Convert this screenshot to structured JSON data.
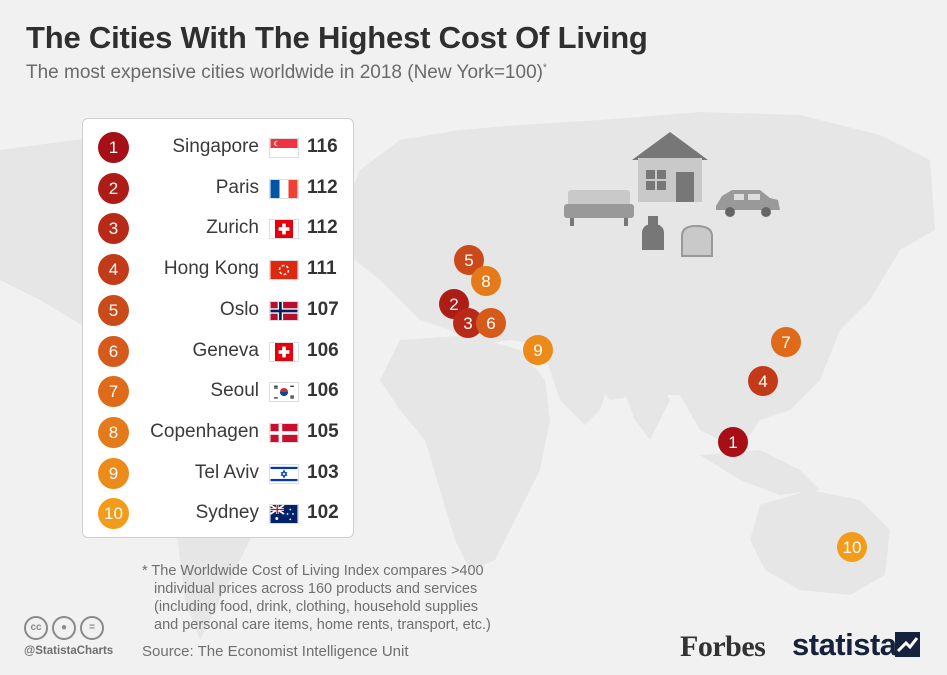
{
  "title": "The Cities With The Highest Cost Of Living",
  "subtitle": "The most expensive cities worldwide in 2018 (New York=100)",
  "subtitle_mark": "*",
  "footnote": [
    "* The Worldwide Cost of Living Index compares >400",
    "individual prices across 160 products and services",
    "(including food, drink, clothing, household supplies",
    "and personal care items, home rents, transport, etc.)"
  ],
  "source": "Source: The Economist Intelligence Unit",
  "handle": "@StatistaCharts",
  "brand": {
    "forbes": "Forbes",
    "statista": "statista"
  },
  "icons": [
    "cc-icon",
    "attribution-icon",
    "no-derivatives-icon",
    "house-icon",
    "sofa-icon",
    "car-icon",
    "bottle-icon",
    "bread-icon",
    "statista-logo-icon"
  ],
  "colors": {
    "background": "#f1f1f1",
    "land": "#e6e6e6",
    "rank_dark": "#a50f15",
    "rank_mid": "#c6421a",
    "rank_light": "#f08c1a",
    "text": "#333333"
  },
  "chart_data": {
    "type": "table",
    "title": "The Cities With The Highest Cost Of Living",
    "subtitle": "The most expensive cities worldwide in 2018 (New York=100)",
    "rows": [
      {
        "rank": "1",
        "city": "Singapore",
        "value": 116,
        "flag": "singapore-flag",
        "color": "#a50f15"
      },
      {
        "rank": "2",
        "city": "Paris",
        "value": 112,
        "flag": "france-flag",
        "color": "#ae1c16"
      },
      {
        "rank": "3",
        "city": "Zurich",
        "value": 112,
        "flag": "switzerland-flag",
        "color": "#b82a17"
      },
      {
        "rank": "4",
        "city": "Hong Kong",
        "value": 111,
        "flag": "hong-kong-flag",
        "color": "#c23a18"
      },
      {
        "rank": "5",
        "city": "Oslo",
        "value": 107,
        "flag": "norway-flag",
        "color": "#cb4a19"
      },
      {
        "rank": "6",
        "city": "Geneva",
        "value": 106,
        "flag": "switzerland-flag",
        "color": "#d65a1a"
      },
      {
        "rank": "7",
        "city": "Seoul",
        "value": 106,
        "flag": "south-korea-flag",
        "color": "#df6a1a"
      },
      {
        "rank": "8",
        "city": "Copenhagen",
        "value": 105,
        "flag": "denmark-flag",
        "color": "#e57a1a"
      },
      {
        "rank": "9",
        "city": "Tel Aviv",
        "value": 103,
        "flag": "israel-flag",
        "color": "#ec8a1a"
      },
      {
        "rank": "10",
        "city": "Sydney",
        "value": 102,
        "flag": "australia-flag",
        "color": "#f39b1a"
      }
    ],
    "map_markers": [
      "1",
      "2",
      "3",
      "4",
      "5",
      "6",
      "7",
      "8",
      "9",
      "10"
    ]
  }
}
